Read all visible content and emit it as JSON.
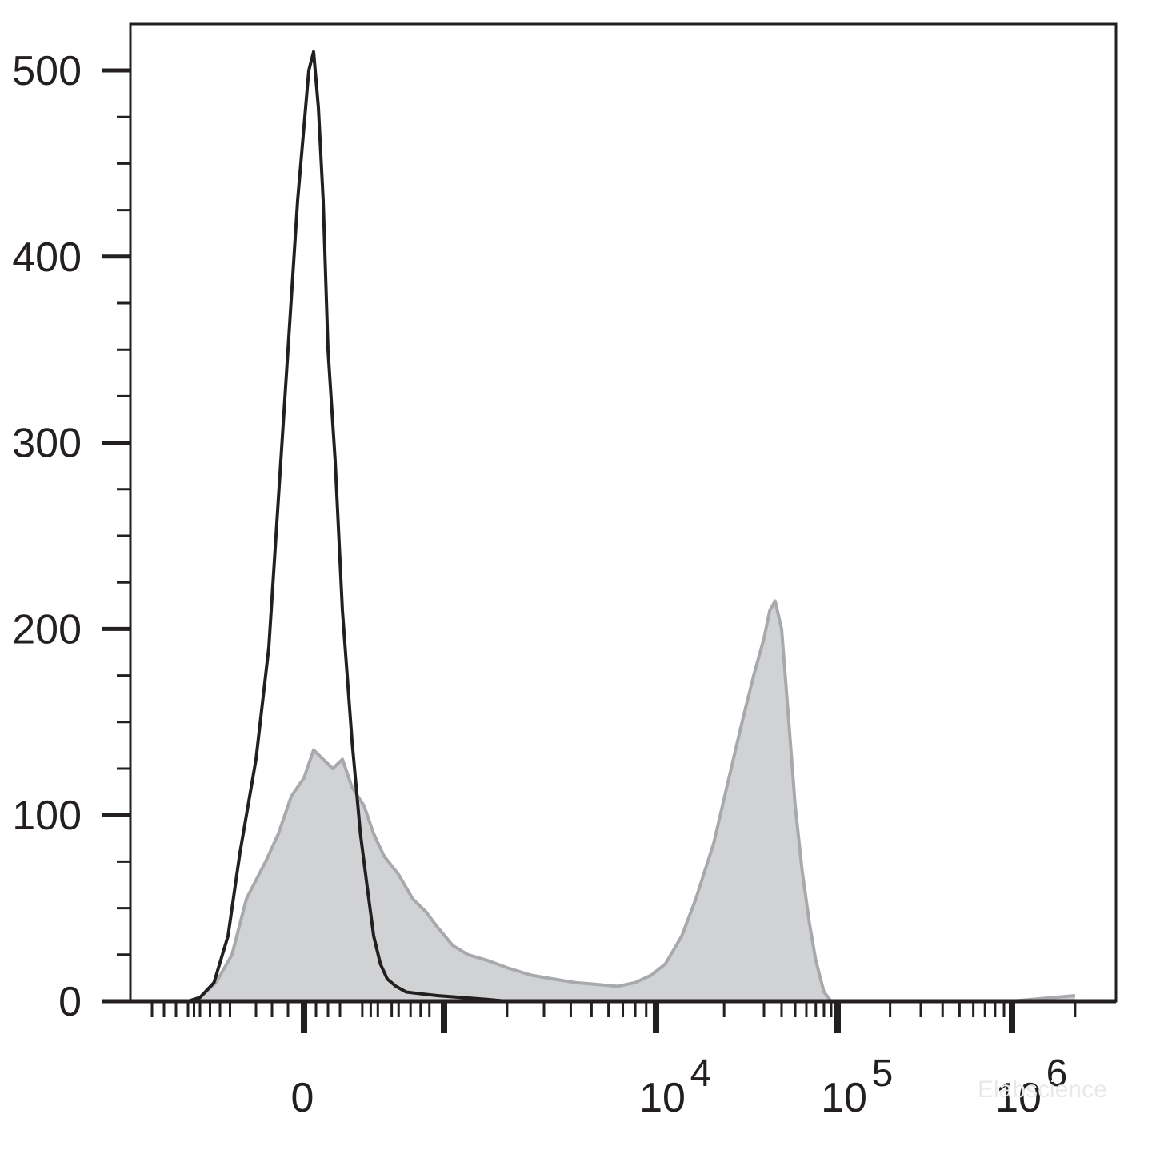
{
  "chart_data": {
    "type": "area",
    "title": "",
    "xlabel": "",
    "ylabel": "",
    "x_scale": "biexponential",
    "ylim": [
      0,
      520
    ],
    "y_ticks": [
      "0",
      "100",
      "200",
      "300",
      "400",
      "500"
    ],
    "x_tick_labels": [
      {
        "value": "0",
        "base": "0",
        "exp": ""
      },
      {
        "value": "10^4",
        "base": "10",
        "exp": "4"
      },
      {
        "value": "10^5",
        "base": "10",
        "exp": "5"
      },
      {
        "value": "10^6",
        "base": "10",
        "exp": "6"
      }
    ],
    "grid": false,
    "legend": "none",
    "series": [
      {
        "style": "filled",
        "fill_color": "#d1d2d4",
        "stroke_color": "#a7a9ac",
        "x": [
          -500,
          -400,
          -320,
          -240,
          -180,
          -120,
          -80,
          -40,
          0,
          40,
          80,
          120,
          160,
          200,
          260,
          320,
          400,
          500,
          620,
          760,
          900,
          1100,
          1300,
          1600,
          2000,
          2600,
          3300,
          4200,
          5300,
          6600,
          8000,
          9500,
          11000,
          13000,
          15000,
          18000,
          21000,
          24000,
          27000,
          30000,
          33000,
          36000,
          40000,
          45000,
          50000,
          56000,
          63000,
          70000,
          80000,
          90000,
          100000,
          200000,
          500000,
          1000000,
          2000000
        ],
        "y": [
          0,
          2,
          10,
          25,
          55,
          75,
          90,
          110,
          120,
          135,
          130,
          125,
          130,
          115,
          105,
          90,
          78,
          68,
          55,
          48,
          40,
          30,
          25,
          22,
          18,
          14,
          12,
          10,
          9,
          8,
          10,
          14,
          20,
          35,
          55,
          85,
          120,
          150,
          175,
          195,
          210,
          215,
          200,
          150,
          105,
          70,
          42,
          22,
          5,
          0,
          0,
          0,
          0,
          0,
          3
        ]
      },
      {
        "style": "line",
        "stroke_color": "#231f20",
        "x": [
          -500,
          -400,
          -330,
          -260,
          -200,
          -150,
          -110,
          -80,
          -50,
          -20,
          0,
          20,
          40,
          60,
          80,
          100,
          130,
          160,
          200,
          240,
          280,
          320,
          370,
          420,
          480,
          560,
          700,
          900,
          1200,
          1600,
          2000,
          1000000
        ],
        "y": [
          0,
          2,
          10,
          35,
          80,
          130,
          190,
          270,
          350,
          430,
          470,
          500,
          510,
          480,
          430,
          350,
          290,
          210,
          140,
          90,
          60,
          35,
          20,
          12,
          8,
          5,
          4,
          3,
          2,
          1,
          0,
          0
        ]
      }
    ]
  },
  "watermark": "Elabscience"
}
